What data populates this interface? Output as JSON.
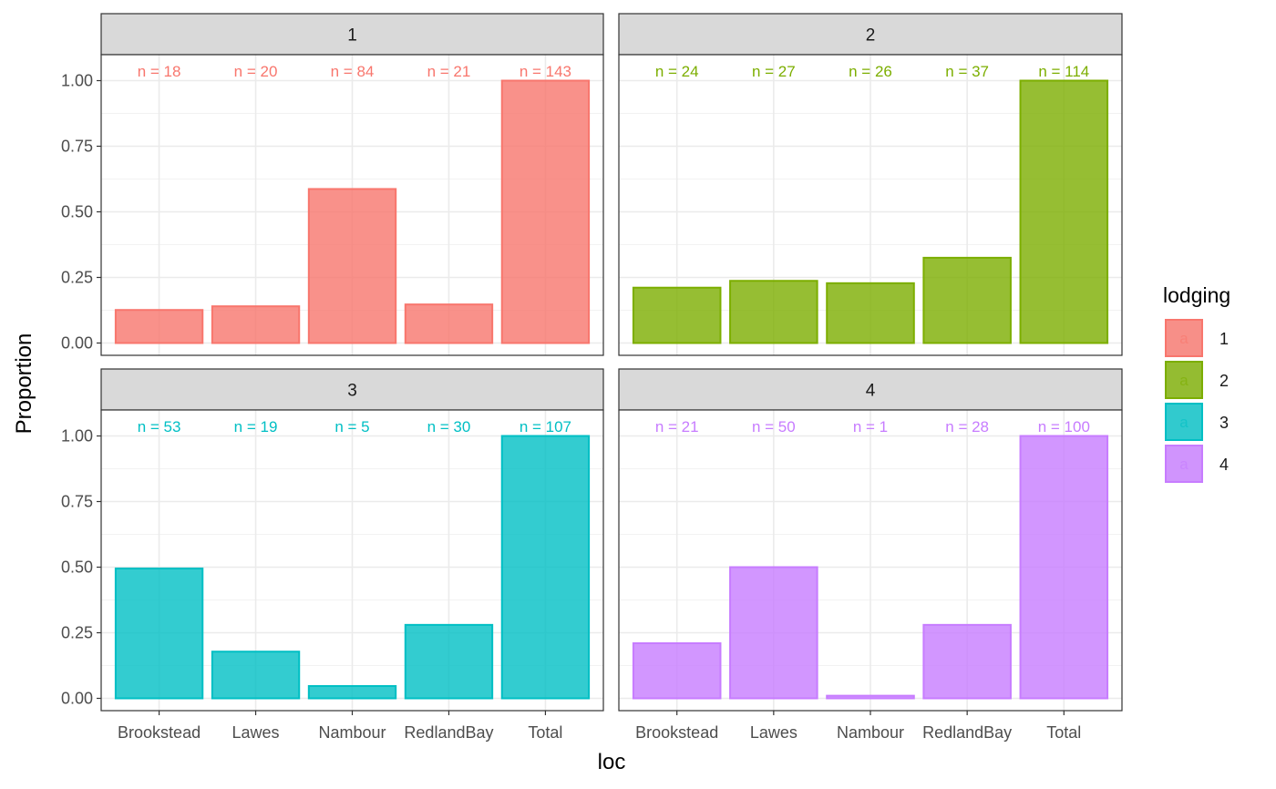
{
  "chart_data": {
    "type": "bar",
    "facet_by": "lodging",
    "xlabel": "loc",
    "ylabel": "Proportion",
    "ylim": [
      0,
      1.05
    ],
    "y_ticks": [
      "0.00",
      "0.25",
      "0.50",
      "0.75",
      "1.00"
    ],
    "categories": [
      "Brookstead",
      "Lawes",
      "Nambour",
      "RedlandBay",
      "Total"
    ],
    "grid": true,
    "legend": {
      "title": "lodging",
      "position": "right",
      "key_glyph": "a",
      "entries": [
        {
          "label": "1",
          "color": "#F8766D"
        },
        {
          "label": "2",
          "color": "#7CAE00"
        },
        {
          "label": "3",
          "color": "#00BFC4"
        },
        {
          "label": "4",
          "color": "#C77CFF"
        }
      ]
    },
    "panels": [
      {
        "strip": "1",
        "color": "#F8766D",
        "values": [
          0.126,
          0.14,
          0.587,
          0.147,
          1.0
        ],
        "labels": [
          "n = 18",
          "n = 20",
          "n = 84",
          "n = 21",
          "n = 143"
        ]
      },
      {
        "strip": "2",
        "color": "#7CAE00",
        "values": [
          0.211,
          0.237,
          0.228,
          0.325,
          1.0
        ],
        "labels": [
          "n = 24",
          "n = 27",
          "n = 26",
          "n = 37",
          "n = 114"
        ]
      },
      {
        "strip": "3",
        "color": "#00BFC4",
        "values": [
          0.495,
          0.178,
          0.047,
          0.28,
          1.0
        ],
        "labels": [
          "n = 53",
          "n = 19",
          "n = 5",
          "n = 30",
          "n = 107"
        ]
      },
      {
        "strip": "4",
        "color": "#C77CFF",
        "values": [
          0.21,
          0.5,
          0.01,
          0.28,
          1.0
        ],
        "labels": [
          "n = 21",
          "n = 50",
          "n = 1",
          "n = 28",
          "n = 100"
        ]
      }
    ]
  }
}
